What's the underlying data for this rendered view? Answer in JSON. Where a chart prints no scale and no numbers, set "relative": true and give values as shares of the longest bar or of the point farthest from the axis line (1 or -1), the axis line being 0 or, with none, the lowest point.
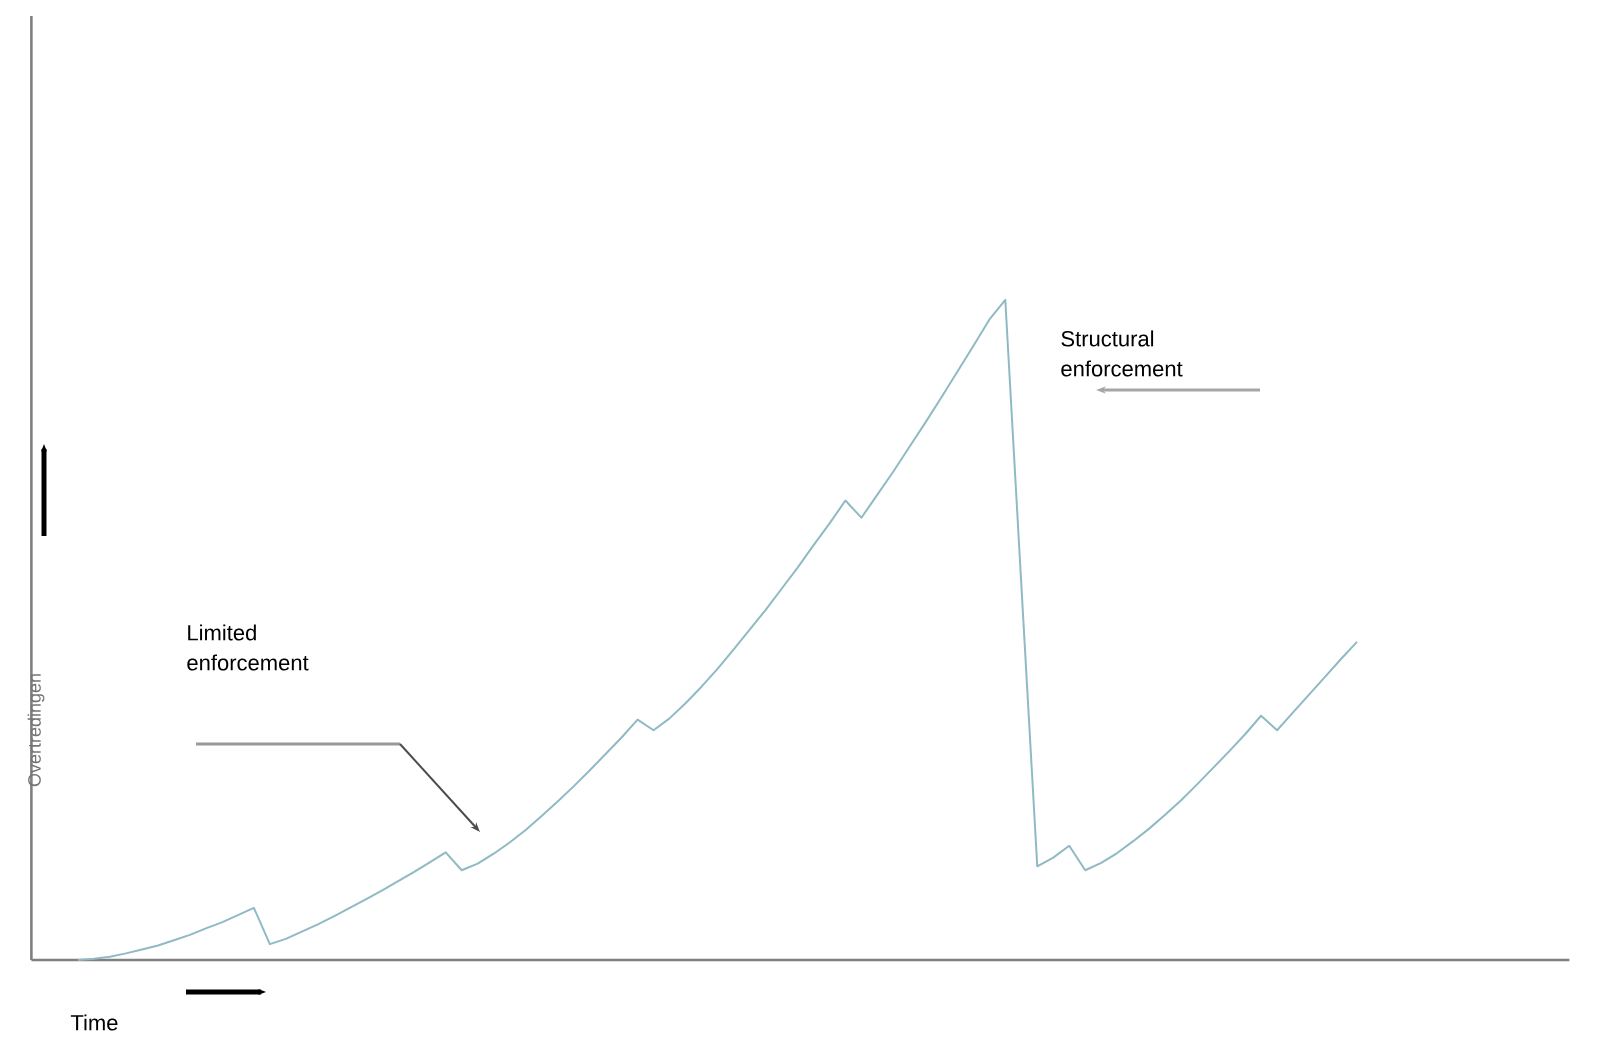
{
  "chart_data": {
    "type": "line",
    "relative": true,
    "xlabel": "Time",
    "ylabel": "Overtredingen",
    "tick_labels": false,
    "legend": false,
    "marker": "none",
    "line_style": "solid",
    "categories": [
      null,
      null,
      null,
      null,
      null,
      null,
      null,
      null,
      null,
      null,
      null,
      null,
      null,
      null,
      null,
      null,
      null,
      null,
      null,
      null,
      null,
      null,
      null,
      null,
      null,
      null,
      null,
      null,
      null,
      null,
      null,
      null,
      null,
      null,
      null,
      null,
      null,
      null,
      null,
      null,
      null,
      null,
      null,
      null,
      null,
      null,
      null,
      null,
      null,
      null,
      null,
      null,
      null,
      null,
      null,
      null,
      null,
      null,
      null,
      null,
      null,
      null,
      null,
      null,
      null,
      null,
      null,
      null,
      null,
      null,
      null,
      null,
      null,
      null,
      null,
      null,
      null,
      null,
      null,
      null,
      null
    ],
    "series": [
      {
        "color": "#8fbac4",
        "values": [
          0,
          0.002,
          0.005,
          0.01,
          0.016,
          0.022,
          0.03,
          0.038,
          0.048,
          0.057,
          0.068,
          0.079,
          0.024,
          0.032,
          0.043,
          0.054,
          0.066,
          0.079,
          0.092,
          0.105,
          0.119,
          0.133,
          0.148,
          0.163,
          0.136,
          0.146,
          0.161,
          0.178,
          0.197,
          0.218,
          0.24,
          0.263,
          0.287,
          0.312,
          0.337,
          0.364,
          0.348,
          0.366,
          0.389,
          0.414,
          0.441,
          0.47,
          0.5,
          0.53,
          0.562,
          0.594,
          0.628,
          0.661,
          0.696,
          0.67,
          0.705,
          0.74,
          0.777,
          0.814,
          0.852,
          0.891,
          0.93,
          0.97,
          1,
          0.57,
          0.142,
          0.155,
          0.173,
          0.136,
          0.147,
          0.162,
          0.18,
          0.199,
          0.22,
          0.242,
          0.266,
          0.291,
          0.316,
          0.342,
          0.37,
          0.348,
          0.375,
          0.402,
          0.429,
          0.456,
          0.482
        ]
      }
    ],
    "annotations": [
      "Limited enforcement",
      "Structural enforcement"
    ]
  }
}
